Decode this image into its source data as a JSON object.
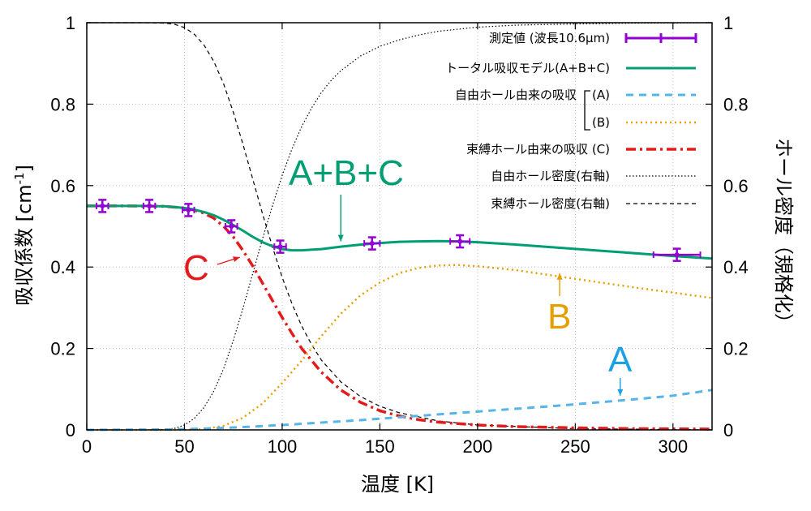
{
  "chart_data": {
    "type": "line",
    "xlabel": "温度 [K]",
    "ylabel": "吸収係数 [cm-1]",
    "ylabel_base": "吸収係数 [cm",
    "ylabel_sup": "-1",
    "ylabel_close": "]",
    "y2label": "ホール密度（規格化）",
    "xlim": [
      0,
      320
    ],
    "ylim": [
      0,
      1
    ],
    "y2lim": [
      0,
      1
    ],
    "xticks": [
      0,
      50,
      100,
      150,
      200,
      250,
      300
    ],
    "yticks": [
      "0",
      "0.2",
      "0.4",
      "0.6",
      "0.8",
      "1"
    ],
    "y2ticks": [
      "0",
      "0.2",
      "0.4",
      "0.6",
      "0.8",
      "1"
    ],
    "grid": true,
    "legend_position": "top-right",
    "measured": {
      "name": "測定値 (波長10.6μm)",
      "color": "#9400d3",
      "points": [
        {
          "x": 8,
          "y": 0.55,
          "yerr": 0.015,
          "xerr": 3
        },
        {
          "x": 32,
          "y": 0.55,
          "yerr": 0.015,
          "xerr": 3
        },
        {
          "x": 52,
          "y": 0.54,
          "yerr": 0.015,
          "xerr": 3
        },
        {
          "x": 74,
          "y": 0.5,
          "yerr": 0.015,
          "xerr": 3
        },
        {
          "x": 99,
          "y": 0.45,
          "yerr": 0.015,
          "xerr": 3
        },
        {
          "x": 146,
          "y": 0.458,
          "yerr": 0.015,
          "xerr": 4
        },
        {
          "x": 191,
          "y": 0.463,
          "yerr": 0.015,
          "xerr": 5
        },
        {
          "x": 302,
          "y": 0.43,
          "yerr": 0.015,
          "xerr": 12
        }
      ]
    },
    "series": [
      {
        "name": "トータル吸収モデル(A+B+C)",
        "color": "#009e73",
        "style": "solid",
        "x": [
          0,
          10,
          20,
          30,
          40,
          50,
          55,
          60,
          65,
          70,
          75,
          80,
          85,
          90,
          95,
          100,
          105,
          110,
          120,
          130,
          140,
          150,
          160,
          170,
          180,
          190,
          200,
          220,
          240,
          260,
          280,
          300,
          320
        ],
        "y": [
          0.55,
          0.55,
          0.55,
          0.55,
          0.549,
          0.545,
          0.541,
          0.535,
          0.527,
          0.516,
          0.503,
          0.489,
          0.474,
          0.461,
          0.451,
          0.444,
          0.441,
          0.441,
          0.444,
          0.45,
          0.455,
          0.459,
          0.462,
          0.463,
          0.4635,
          0.463,
          0.461,
          0.455,
          0.448,
          0.441,
          0.434,
          0.427,
          0.421
        ]
      },
      {
        "name": "(A)",
        "color": "#56b4e9",
        "style": "dashed",
        "x": [
          0,
          40,
          60,
          80,
          100,
          120,
          140,
          160,
          180,
          200,
          220,
          240,
          260,
          280,
          300,
          320
        ],
        "y": [
          0,
          0.001,
          0.003,
          0.007,
          0.012,
          0.018,
          0.024,
          0.031,
          0.038,
          0.045,
          0.052,
          0.059,
          0.067,
          0.075,
          0.084,
          0.098
        ]
      },
      {
        "name": "(B)",
        "color": "#e69f00",
        "style": "dotted",
        "x": [
          0,
          50,
          60,
          70,
          80,
          90,
          100,
          110,
          120,
          130,
          140,
          150,
          160,
          170,
          180,
          190,
          200,
          220,
          240,
          260,
          280,
          300,
          320
        ],
        "y": [
          0,
          0,
          0.002,
          0.01,
          0.03,
          0.065,
          0.115,
          0.17,
          0.23,
          0.285,
          0.33,
          0.362,
          0.385,
          0.398,
          0.404,
          0.405,
          0.402,
          0.392,
          0.378,
          0.364,
          0.35,
          0.337,
          0.324
        ]
      },
      {
        "name": "束縛ホール由来の吸収 (C)",
        "color": "#e41a1c",
        "style": "dashdot",
        "x": [
          0,
          20,
          40,
          50,
          55,
          60,
          65,
          70,
          75,
          80,
          85,
          90,
          95,
          100,
          105,
          110,
          120,
          130,
          140,
          150,
          160,
          170,
          180,
          200,
          220,
          250,
          280,
          320
        ],
        "y": [
          0.55,
          0.55,
          0.549,
          0.545,
          0.54,
          0.532,
          0.52,
          0.5,
          0.474,
          0.44,
          0.402,
          0.36,
          0.318,
          0.276,
          0.237,
          0.2,
          0.142,
          0.098,
          0.068,
          0.047,
          0.034,
          0.025,
          0.019,
          0.012,
          0.008,
          0.005,
          0.003,
          0.002
        ]
      },
      {
        "name": "自由ホール密度(右軸)",
        "color": "#000000",
        "style": "fine-dotted",
        "x": [
          0,
          30,
          40,
          45,
          50,
          55,
          60,
          65,
          70,
          75,
          80,
          85,
          90,
          95,
          100,
          105,
          110,
          115,
          120,
          125,
          130,
          140,
          150,
          160,
          170,
          180,
          200,
          220,
          250,
          280,
          320
        ],
        "y": [
          0,
          0,
          0.001,
          0.004,
          0.012,
          0.028,
          0.055,
          0.095,
          0.15,
          0.22,
          0.3,
          0.385,
          0.47,
          0.55,
          0.625,
          0.69,
          0.745,
          0.79,
          0.828,
          0.858,
          0.882,
          0.918,
          0.942,
          0.958,
          0.97,
          0.979,
          0.989,
          0.994,
          0.997,
          0.999,
          1.0
        ]
      },
      {
        "name": "束縛ホール密度(右軸)",
        "color": "#000000",
        "style": "dashed-thin",
        "x": [
          0,
          20,
          30,
          40,
          45,
          50,
          55,
          60,
          65,
          70,
          75,
          80,
          85,
          90,
          95,
          100,
          105,
          110,
          115,
          120,
          130,
          140,
          150,
          160,
          180,
          200,
          250,
          320
        ],
        "y": [
          1,
          1,
          1,
          0.999,
          0.996,
          0.988,
          0.972,
          0.945,
          0.905,
          0.85,
          0.78,
          0.7,
          0.615,
          0.53,
          0.45,
          0.375,
          0.31,
          0.255,
          0.21,
          0.172,
          0.118,
          0.082,
          0.058,
          0.042,
          0.022,
          0.012,
          0.003,
          0.0
        ]
      }
    ],
    "legend": {
      "measured": "測定値 (波長10.6μm)",
      "total": "トータル吸収モデル(A+B+C)",
      "free_prefix": "自由ホール由来の吸収",
      "a": "(A)",
      "b": "(B)",
      "c": "束縛ホール由来の吸収 (C)",
      "free_density": "自由ホール密度(右軸)",
      "bound_density": "束縛ホール密度(右軸)"
    },
    "annotations": [
      {
        "text": "A+B+C",
        "color": "#009e73",
        "target_x": 130,
        "target_y": 0.455
      },
      {
        "text": "C",
        "color": "#e41a1c",
        "target_x": 80,
        "target_y": 0.43
      },
      {
        "text": "B",
        "color": "#e69f00",
        "target_x": 242,
        "target_y": 0.385
      },
      {
        "text": "A",
        "color": "#1ba1e2",
        "target_x": 273,
        "target_y": 0.078
      }
    ]
  }
}
